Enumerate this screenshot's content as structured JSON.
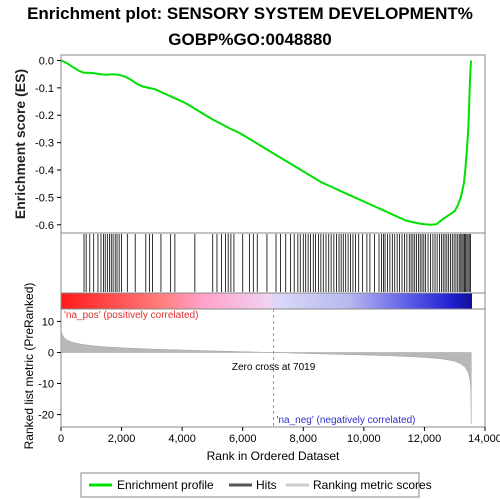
{
  "chart_data": {
    "type": "line",
    "title_line1": "Enrichment plot: SENSORY SYSTEM DEVELOPMENT%",
    "title_line2": "GOBP%GO:0048880",
    "es_panel": {
      "ylabel": "Enrichment score (ES)",
      "ylim": [
        -0.63,
        0.02
      ],
      "yticks": [
        "0.0",
        "-0.1",
        "-0.2",
        "-0.3",
        "-0.4",
        "-0.5",
        "-0.6"
      ],
      "ytick_values": [
        0.0,
        -0.1,
        -0.2,
        -0.3,
        -0.4,
        -0.5,
        -0.6
      ],
      "series": [
        {
          "name": "Enrichment profile",
          "color": "#00e000",
          "x": [
            0,
            200,
            400,
            600,
            750,
            900,
            1100,
            1300,
            1500,
            1700,
            1900,
            2100,
            2300,
            2500,
            2700,
            2900,
            3100,
            3300,
            3500,
            3800,
            4100,
            4400,
            4700,
            5000,
            5300,
            5600,
            5900,
            6200,
            6500,
            6800,
            7100,
            7400,
            7700,
            8000,
            8300,
            8600,
            8900,
            9200,
            9500,
            9800,
            10100,
            10400,
            10700,
            11000,
            11200,
            11400,
            11600,
            11800,
            12000,
            12200,
            12400,
            12600,
            12800,
            13000,
            13100,
            13200,
            13300,
            13350,
            13400,
            13450,
            13480,
            13500,
            13520,
            13540
          ],
          "y": [
            0.0,
            -0.01,
            -0.025,
            -0.038,
            -0.045,
            -0.045,
            -0.047,
            -0.05,
            -0.052,
            -0.05,
            -0.052,
            -0.058,
            -0.07,
            -0.085,
            -0.095,
            -0.1,
            -0.105,
            -0.115,
            -0.125,
            -0.14,
            -0.155,
            -0.175,
            -0.195,
            -0.215,
            -0.232,
            -0.25,
            -0.265,
            -0.285,
            -0.305,
            -0.325,
            -0.345,
            -0.365,
            -0.385,
            -0.405,
            -0.425,
            -0.445,
            -0.46,
            -0.475,
            -0.49,
            -0.505,
            -0.52,
            -0.535,
            -0.55,
            -0.565,
            -0.575,
            -0.585,
            -0.59,
            -0.595,
            -0.598,
            -0.6,
            -0.598,
            -0.58,
            -0.565,
            -0.55,
            -0.53,
            -0.5,
            -0.45,
            -0.4,
            -0.33,
            -0.25,
            -0.15,
            -0.08,
            -0.03,
            0.0
          ]
        }
      ]
    },
    "hits": {
      "name": "Hits",
      "color": "#000000",
      "positions": [
        760,
        830,
        950,
        1080,
        1220,
        1320,
        1400,
        1460,
        1530,
        1600,
        1660,
        1720,
        1790,
        1850,
        1920,
        2000,
        2190,
        2450,
        2800,
        2920,
        3020,
        3300,
        3620,
        3760,
        4420,
        5010,
        5150,
        5300,
        5430,
        5520,
        5610,
        5710,
        6000,
        6220,
        6350,
        6480,
        6800,
        7100,
        7250,
        7420,
        7580,
        7700,
        7820,
        7900,
        8000,
        8080,
        8160,
        8240,
        8330,
        8400,
        8500,
        8580,
        8660,
        8750,
        8840,
        8920,
        9010,
        9100,
        9180,
        9250,
        9320,
        9400,
        9480,
        9560,
        9640,
        9720,
        9830,
        9960,
        10100,
        10200,
        10350,
        10500,
        10580,
        10650,
        10700,
        10780,
        10860,
        10940,
        11020,
        11100,
        11180,
        11260,
        11340,
        11420,
        11500,
        11560,
        11620,
        11680,
        11740,
        11800,
        11860,
        11920,
        11980,
        12040,
        12120,
        12200,
        12280,
        12350,
        12420,
        12500,
        12560,
        12620,
        12680,
        12740,
        12800,
        12860,
        12920,
        12980,
        13040,
        13100,
        13150,
        13200,
        13240,
        13280,
        13320,
        13360,
        13400,
        13440,
        13480,
        13520
      ]
    },
    "metric_panel": {
      "ylabel": "Ranked list metric (PreRanked)",
      "xlabel": "Rank in Ordered Dataset",
      "ylim": [
        -24,
        14
      ],
      "yticks": [
        "10",
        "0",
        "-10",
        "-20"
      ],
      "ytick_values": [
        10,
        0,
        -10,
        -20
      ],
      "xlim": [
        0,
        14000
      ],
      "xticks": [
        "0",
        "2,000",
        "4,000",
        "6,000",
        "8,000",
        "10,000",
        "12,000",
        "14,000"
      ],
      "xtick_values": [
        0,
        2000,
        4000,
        6000,
        8000,
        10000,
        12000,
        14000
      ],
      "series": [
        {
          "name": "Ranking metric scores",
          "color": "#b0b0b0",
          "x": [
            0,
            30,
            100,
            200,
            400,
            700,
            1000,
            1500,
            2000,
            3000,
            4000,
            5000,
            6000,
            7019,
            8000,
            9000,
            10000,
            11000,
            12000,
            12600,
            13000,
            13200,
            13350,
            13450,
            13500,
            13530,
            13545
          ],
          "y": [
            7.5,
            6.0,
            4.8,
            4.0,
            3.2,
            2.6,
            2.2,
            1.8,
            1.5,
            1.1,
            0.8,
            0.5,
            0.25,
            0.0,
            -0.3,
            -0.55,
            -0.8,
            -1.1,
            -1.6,
            -2.1,
            -2.8,
            -3.6,
            -4.8,
            -6.5,
            -8.5,
            -12.0,
            -23.0
          ]
        }
      ],
      "zero_cross_label": "Zero cross at 7019",
      "zero_cross_x": 7019,
      "pos_label": "'na_pos' (positively correlated)",
      "neg_label": "'na_neg' (negatively correlated)"
    },
    "color_bar": {
      "stops": [
        "#ff2020",
        "#ff9090",
        "#ffc0e0",
        "#c8c8f0",
        "#4040e0",
        "#1010b0"
      ]
    },
    "legend": {
      "position": "bottom",
      "items": [
        {
          "label": "Enrichment profile",
          "color": "#00e000"
        },
        {
          "label": "Hits",
          "color": "#555555"
        },
        {
          "label": "Ranking metric scores",
          "color": "#c8c8c8"
        }
      ]
    },
    "max_rank": 13540
  }
}
